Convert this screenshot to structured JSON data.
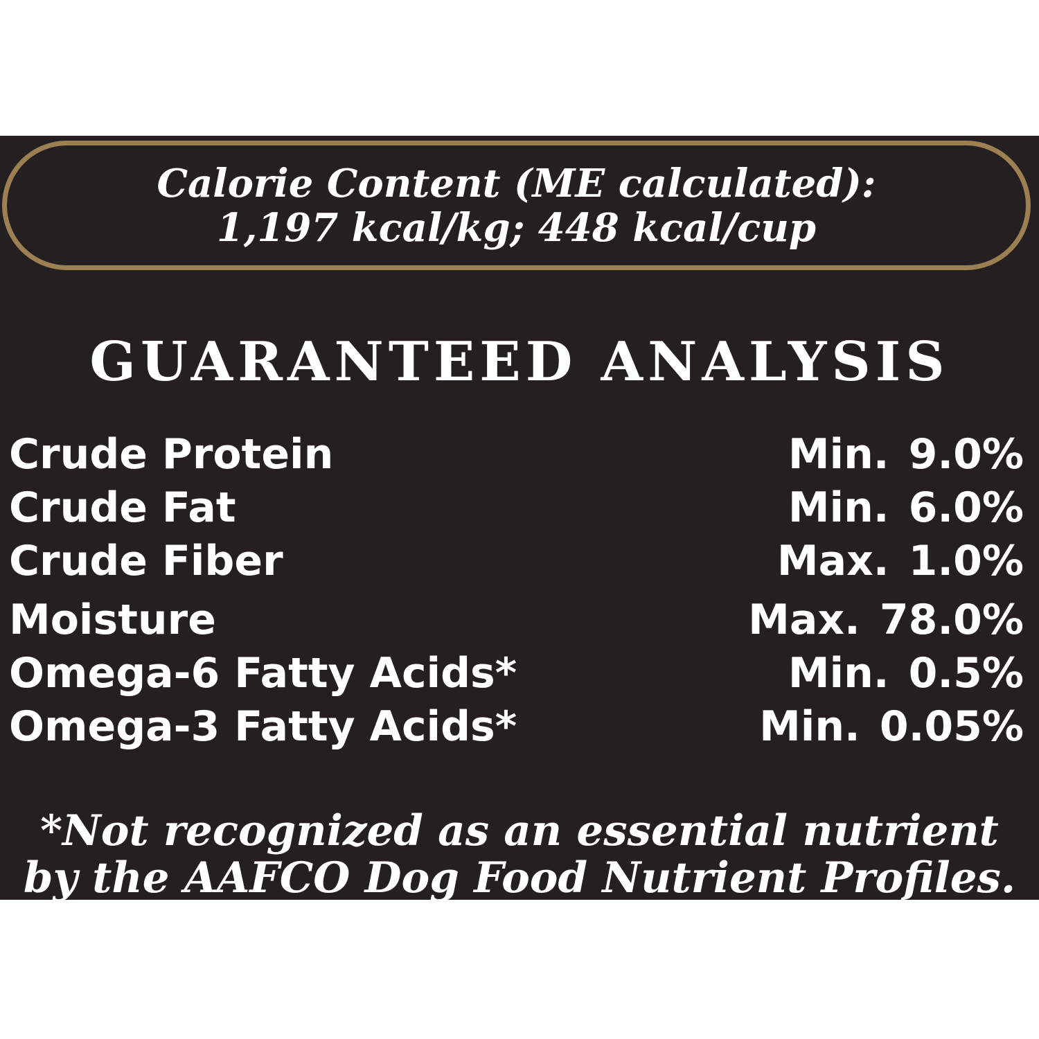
{
  "colors": {
    "page_background": "#ffffff",
    "label_background": "#242021",
    "box_border_gold": "#9d8052",
    "text": "#ffffff"
  },
  "calorie_box": {
    "line1": "Calorie Content (ME calculated):",
    "line2": "1,197 kcal/kg; 448 kcal/cup"
  },
  "heading": "GUARANTEED ANALYSIS",
  "analysis_rows": [
    {
      "name": "Crude Protein",
      "qualifier": "Min.",
      "value": "9.0%"
    },
    {
      "name": "Crude Fat",
      "qualifier": "Min.",
      "value": "6.0%"
    },
    {
      "name": "Crude Fiber",
      "qualifier": "Max.",
      "value": "1.0%"
    },
    {
      "name": "Moisture",
      "qualifier": "Max.",
      "value": "78.0%"
    },
    {
      "name": "Omega-6 Fatty Acids*",
      "qualifier": "Min.",
      "value": "0.5%"
    },
    {
      "name": "Omega-3 Fatty Acids*",
      "qualifier": "Min.",
      "value": "0.05%"
    }
  ],
  "footnote": {
    "line1": "*Not recognized as an essential nutrient",
    "line2": "by the AAFCO Dog Food Nutrient Profiles."
  }
}
